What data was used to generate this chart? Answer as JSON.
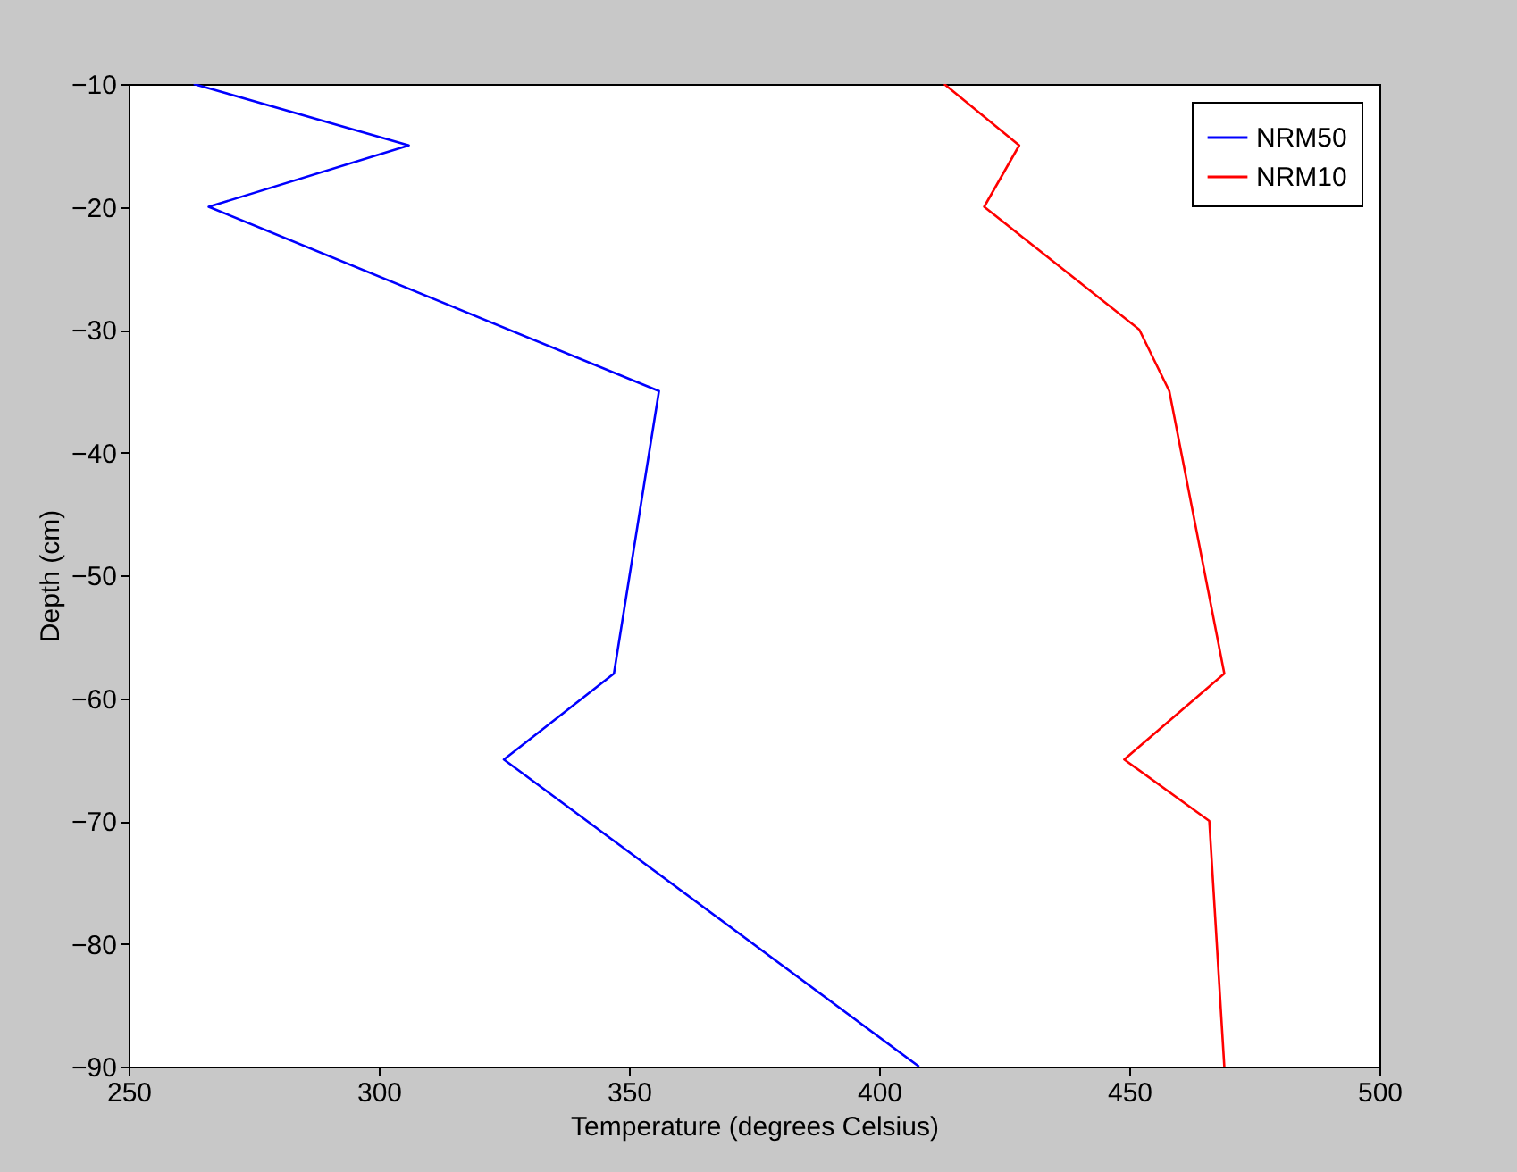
{
  "chart_data": {
    "type": "line",
    "xlabel": "Temperature (degrees Celsius)",
    "ylabel": "Depth (cm)",
    "xlim": [
      250,
      500
    ],
    "xticks": [
      250,
      300,
      350,
      400,
      450,
      500
    ],
    "ylim": [
      -90,
      -10
    ],
    "yticks": [
      -10,
      -20,
      -30,
      -40,
      -50,
      -60,
      -70,
      -80,
      -90
    ],
    "grid": false,
    "legend": "top right",
    "marker": "none",
    "line_style": "solid",
    "series": [
      {
        "name": "NRM50",
        "color": "#0000ff",
        "x": [
          263,
          306,
          266,
          356,
          347,
          325,
          408
        ],
        "values": [
          -10,
          -15,
          -20,
          -35,
          -58,
          -65,
          -90
        ]
      },
      {
        "name": "NRM10",
        "color": "#ff0000",
        "x": [
          413,
          428,
          421,
          452,
          458,
          469,
          449,
          466,
          469
        ],
        "values": [
          -10,
          -15,
          -20,
          -30,
          -35,
          -58,
          -65,
          -70,
          -90
        ]
      }
    ]
  }
}
